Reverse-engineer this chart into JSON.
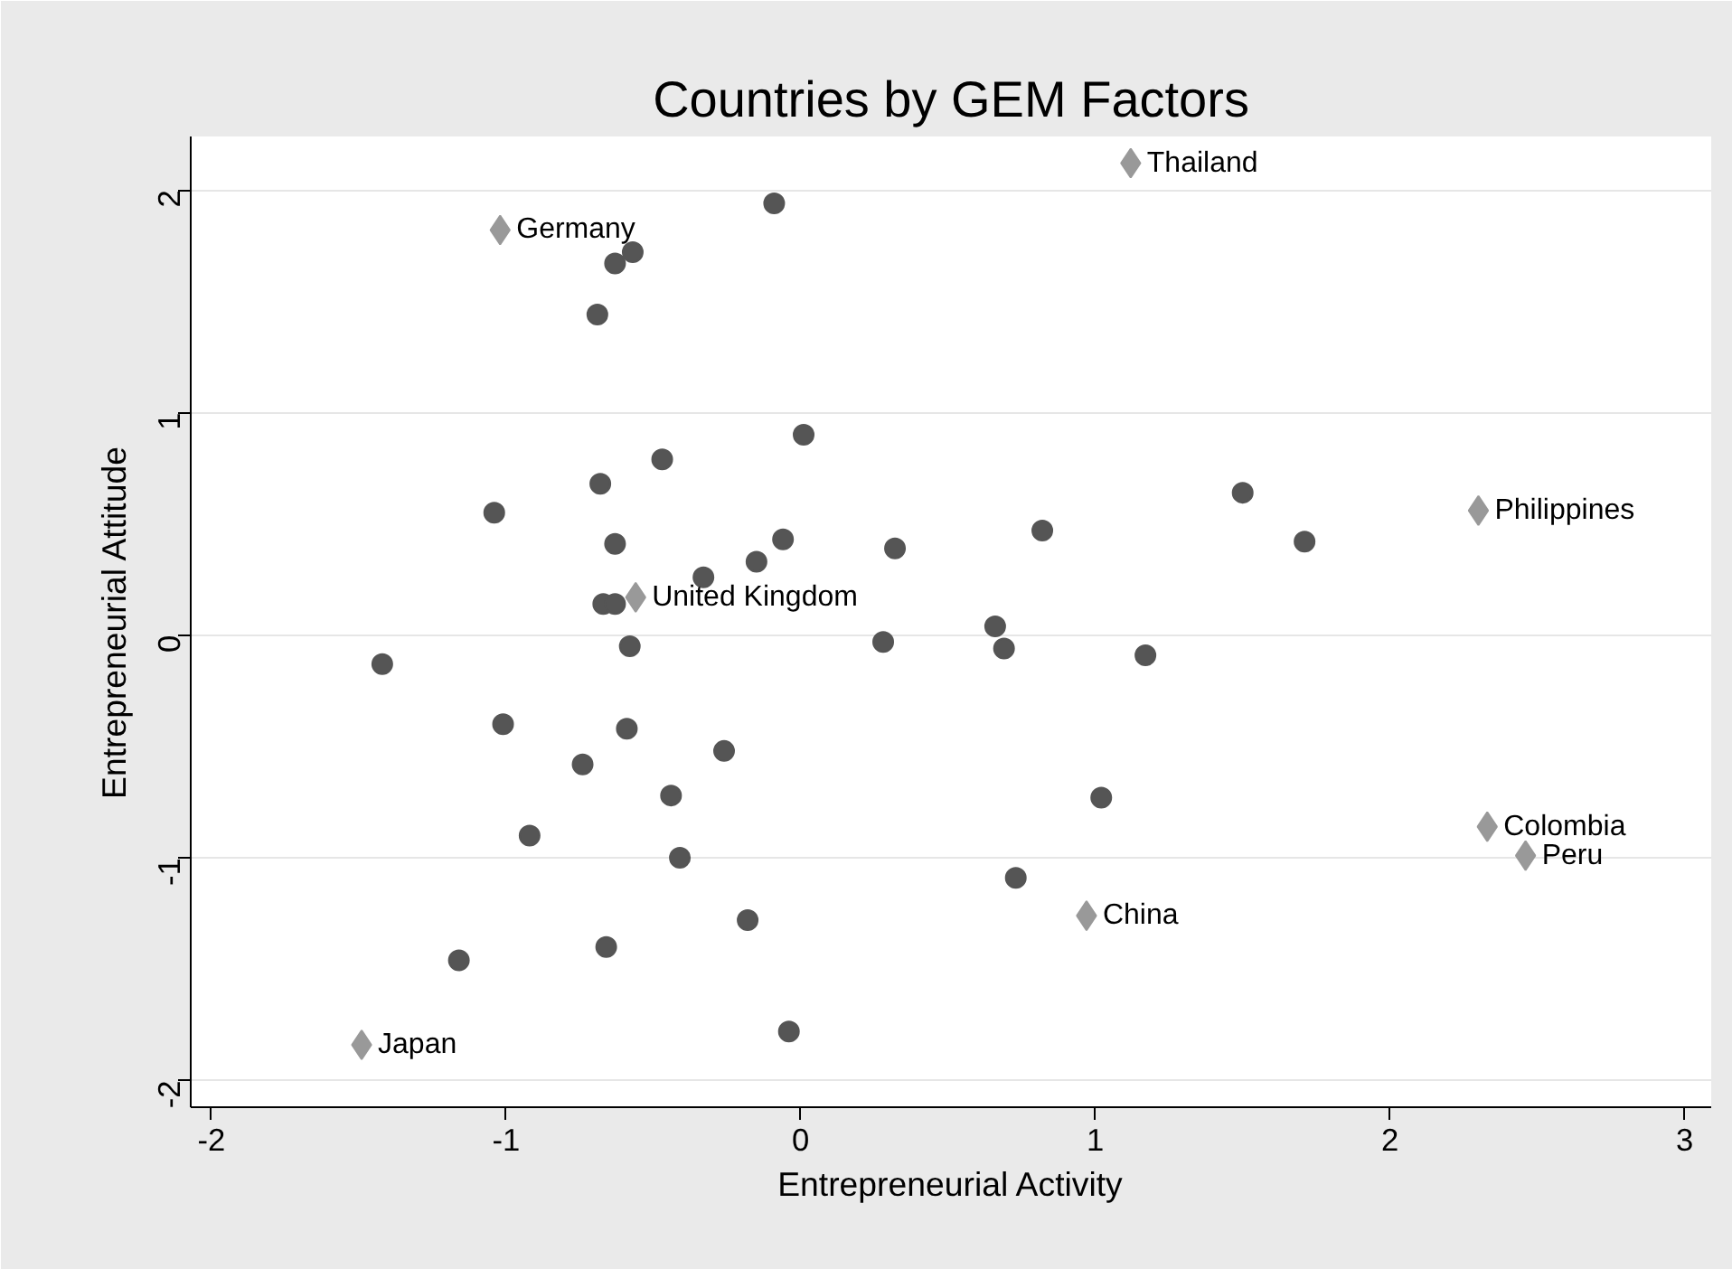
{
  "chart_data": {
    "type": "scatter",
    "title": "Countries by GEM Factors",
    "xlabel": "Entrepreneurial Activity",
    "ylabel": "Entrepreneurial Attitude",
    "xlim": [
      -2.07,
      3.09
    ],
    "ylim": [
      -2.12,
      2.24
    ],
    "xticks": [
      -2,
      -1,
      0,
      1,
      2,
      3
    ],
    "yticks": [
      -2,
      -1,
      0,
      1,
      2
    ],
    "grid": "y",
    "series": [
      {
        "color": "#555555",
        "marker": "circle",
        "x": [
          -0.09,
          -0.63,
          -0.57,
          -0.69,
          0.01,
          -0.68,
          -0.47,
          -1.04,
          -0.63,
          -0.06,
          -0.15,
          -0.33,
          -0.67,
          -0.63,
          0.32,
          0.82,
          1.5,
          1.71,
          -0.58,
          0.28,
          0.66,
          0.69,
          1.17,
          -1.42,
          -1.01,
          -0.59,
          -0.26,
          -0.74,
          -0.44,
          1.02,
          -0.92,
          -0.41,
          0.73,
          -0.18,
          -0.66,
          -1.16,
          -0.04
        ],
        "values": [
          1.94,
          1.67,
          1.72,
          1.44,
          0.9,
          0.68,
          0.79,
          0.55,
          0.41,
          0.43,
          0.33,
          0.26,
          0.14,
          0.14,
          0.39,
          0.47,
          0.64,
          0.42,
          -0.05,
          -0.03,
          0.04,
          -0.06,
          -0.09,
          -0.13,
          -0.4,
          -0.42,
          -0.52,
          -0.58,
          -0.72,
          -0.73,
          -0.9,
          -1.0,
          -1.09,
          -1.28,
          -1.4,
          -1.46,
          -1.78
        ]
      },
      {
        "color": "#999999",
        "marker": "diamond",
        "x": [
          1.12,
          -1.02,
          2.3,
          -0.56,
          2.33,
          2.46,
          0.97,
          -1.49
        ],
        "values": [
          2.12,
          1.82,
          0.56,
          0.17,
          -0.86,
          -0.99,
          -1.26,
          -1.84
        ],
        "value_labels": [
          "Thailand",
          "Germany",
          "Philippines",
          "United Kingdom",
          "Colombia",
          "Peru",
          "China",
          "Japan"
        ]
      }
    ]
  }
}
